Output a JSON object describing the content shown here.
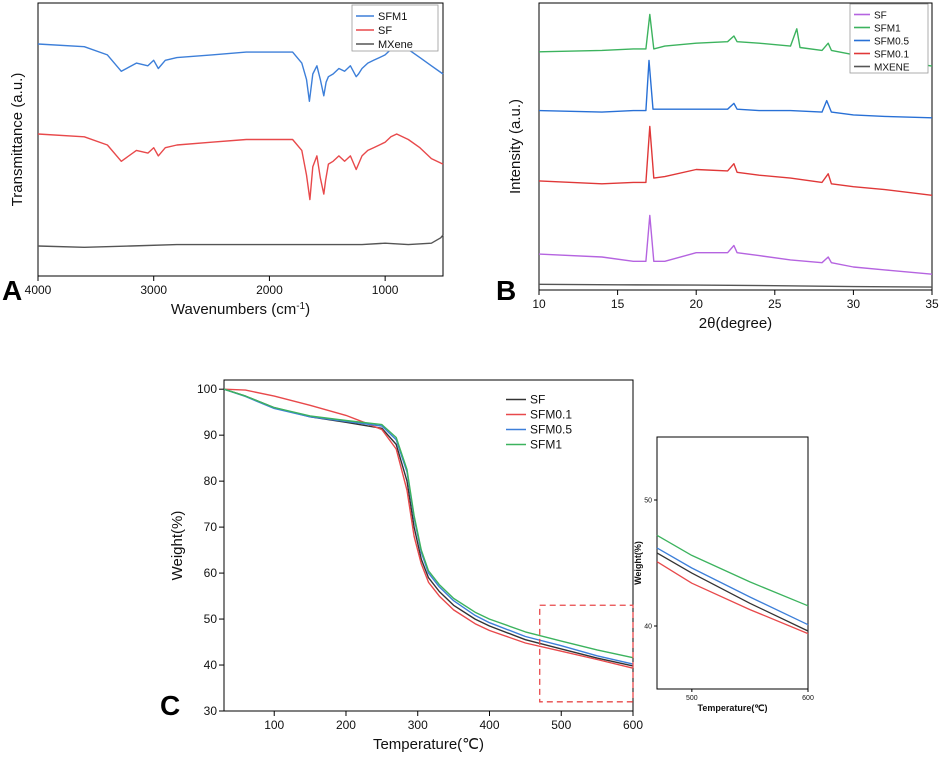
{
  "chart_data": [
    {
      "panel": "A",
      "type": "line",
      "xlabel": "Wavenumbers (cm",
      "xlabel_sup": "-1",
      "xlabel_end": ")",
      "ylabel": "Transmittance (a.u.)",
      "xlim": [
        4000,
        500
      ],
      "x_reversed": true,
      "ylim": [
        0,
        10
      ],
      "xticks": [
        4000,
        3000,
        2000,
        1000
      ],
      "legend_position": "top-right",
      "series": [
        {
          "name": "SFM1",
          "color": "#3d7fd9",
          "x": [
            4000,
            3600,
            3400,
            3280,
            3150,
            3050,
            3000,
            2960,
            2900,
            2800,
            2500,
            2200,
            1800,
            1720,
            1680,
            1655,
            1625,
            1590,
            1560,
            1530,
            1510,
            1490,
            1450,
            1400,
            1350,
            1300,
            1250,
            1230,
            1200,
            1150,
            1100,
            1050,
            1000,
            950,
            900,
            850,
            800,
            700,
            600,
            500
          ],
          "y": [
            8.5,
            8.4,
            8.1,
            7.5,
            7.8,
            7.7,
            7.9,
            7.6,
            7.9,
            8.0,
            8.1,
            8.2,
            8.2,
            7.8,
            7.2,
            6.4,
            7.4,
            7.7,
            7.2,
            6.6,
            7.1,
            7.3,
            7.4,
            7.6,
            7.5,
            7.7,
            7.3,
            7.4,
            7.6,
            7.8,
            7.9,
            8.0,
            8.1,
            8.3,
            8.4,
            8.4,
            8.3,
            8.0,
            7.7,
            7.4
          ]
        },
        {
          "name": "SF",
          "color": "#e8494b",
          "x": [
            4000,
            3600,
            3400,
            3280,
            3150,
            3050,
            3000,
            2960,
            2900,
            2800,
            2500,
            2200,
            1800,
            1720,
            1680,
            1650,
            1625,
            1590,
            1560,
            1530,
            1515,
            1490,
            1450,
            1400,
            1350,
            1300,
            1250,
            1230,
            1200,
            1150,
            1100,
            1050,
            1000,
            950,
            900,
            850,
            800,
            700,
            600,
            500
          ],
          "y": [
            5.2,
            5.1,
            4.8,
            4.2,
            4.6,
            4.5,
            4.7,
            4.4,
            4.7,
            4.8,
            4.9,
            5.0,
            5.0,
            4.6,
            3.7,
            2.8,
            4.0,
            4.4,
            3.6,
            3.0,
            3.5,
            4.1,
            4.2,
            4.4,
            4.2,
            4.4,
            3.9,
            4.1,
            4.4,
            4.6,
            4.7,
            4.8,
            4.9,
            5.1,
            5.2,
            5.1,
            5.0,
            4.7,
            4.3,
            4.1
          ]
        },
        {
          "name": "MXene",
          "color": "#555555",
          "x": [
            4000,
            3600,
            3200,
            2800,
            2400,
            2000,
            1600,
            1200,
            1000,
            800,
            600,
            520,
            500
          ],
          "y": [
            1.1,
            1.05,
            1.1,
            1.15,
            1.15,
            1.15,
            1.15,
            1.15,
            1.2,
            1.15,
            1.2,
            1.4,
            1.5
          ]
        }
      ]
    },
    {
      "panel": "B",
      "type": "line",
      "xlabel": "2θ(degree)",
      "ylabel": "Intensity (a.u.)",
      "xlim": [
        10,
        35
      ],
      "xticks": [
        10,
        15,
        20,
        25,
        30,
        35
      ],
      "ylim": [
        0,
        10
      ],
      "legend_position": "top-right",
      "series": [
        {
          "name": "SF",
          "color": "#b564e0",
          "x": [
            10,
            14,
            16,
            16.8,
            17.05,
            17.3,
            18,
            20,
            22,
            22.4,
            22.6,
            24,
            26,
            28,
            28.4,
            28.6,
            30,
            32,
            35
          ],
          "y": [
            1.25,
            1.15,
            1.0,
            1.0,
            2.6,
            1.0,
            1.0,
            1.3,
            1.3,
            1.55,
            1.3,
            1.2,
            1.05,
            0.95,
            1.15,
            0.95,
            0.8,
            0.7,
            0.55
          ]
        },
        {
          "name": "SFM1",
          "color": "#3cb35e",
          "x": [
            10,
            14,
            16,
            16.8,
            17.05,
            17.3,
            18,
            20,
            22,
            22.4,
            22.6,
            24,
            26,
            26.4,
            26.6,
            28,
            28.4,
            28.6,
            30,
            32,
            35
          ],
          "y": [
            8.3,
            8.35,
            8.4,
            8.4,
            9.6,
            8.4,
            8.5,
            8.6,
            8.65,
            8.85,
            8.65,
            8.6,
            8.5,
            9.1,
            8.45,
            8.35,
            8.6,
            8.35,
            8.2,
            8.05,
            7.8
          ]
        },
        {
          "name": "SFM0.5",
          "color": "#2870d6",
          "x": [
            10,
            14,
            16,
            16.8,
            17.0,
            17.25,
            18,
            20,
            22,
            22.4,
            22.6,
            24,
            26,
            28,
            28.3,
            28.6,
            30,
            32,
            35
          ],
          "y": [
            6.25,
            6.2,
            6.25,
            6.25,
            8.0,
            6.3,
            6.3,
            6.3,
            6.3,
            6.5,
            6.3,
            6.25,
            6.25,
            6.2,
            6.6,
            6.2,
            6.1,
            6.05,
            6.0
          ]
        },
        {
          "name": "SFM0.1",
          "color": "#e03838",
          "x": [
            10,
            14,
            16,
            16.8,
            17.05,
            17.3,
            18,
            20,
            22,
            22.4,
            22.6,
            24,
            26,
            28,
            28.4,
            28.6,
            30,
            32,
            35
          ],
          "y": [
            3.8,
            3.7,
            3.75,
            3.75,
            5.7,
            3.9,
            3.95,
            4.2,
            4.15,
            4.4,
            4.1,
            4.0,
            3.9,
            3.75,
            4.05,
            3.7,
            3.6,
            3.5,
            3.3
          ]
        },
        {
          "name": "MXENE",
          "color": "#555555",
          "x": [
            10,
            15,
            20,
            25,
            30,
            35
          ],
          "y": [
            0.2,
            0.18,
            0.17,
            0.15,
            0.12,
            0.1
          ]
        }
      ]
    },
    {
      "panel": "C",
      "type": "line",
      "xlabel": "Temperature(℃)",
      "ylabel": "Weight(%)",
      "xlim": [
        30,
        600
      ],
      "ylim": [
        30,
        102
      ],
      "xticks": [
        100,
        200,
        300,
        400,
        500,
        600
      ],
      "yticks": [
        30,
        40,
        50,
        60,
        70,
        80,
        90,
        100
      ],
      "legend_position": "top-right",
      "series": [
        {
          "name": "SF",
          "color": "#333333",
          "x": [
            30,
            60,
            100,
            150,
            200,
            250,
            270,
            285,
            295,
            305,
            315,
            330,
            350,
            380,
            400,
            450,
            500,
            550,
            600
          ],
          "y": [
            100,
            98.5,
            96,
            94,
            92.8,
            91.5,
            88,
            80,
            70,
            63,
            59,
            56,
            53,
            50,
            48.5,
            45.5,
            43.5,
            41.5,
            39.8
          ]
        },
        {
          "name": "SFM0.1",
          "color": "#e8494b",
          "x": [
            30,
            60,
            100,
            150,
            200,
            230,
            250,
            270,
            285,
            295,
            305,
            315,
            330,
            350,
            380,
            400,
            450,
            500,
            550,
            600
          ],
          "y": [
            100,
            99.8,
            98.5,
            96.5,
            94.3,
            92.5,
            91.2,
            87,
            78,
            68,
            62,
            58,
            55,
            52,
            49,
            47.5,
            44.8,
            43,
            41.2,
            39.3
          ]
        },
        {
          "name": "SFM0.5",
          "color": "#3d7fd9",
          "x": [
            30,
            60,
            100,
            150,
            200,
            250,
            270,
            285,
            295,
            305,
            315,
            330,
            350,
            380,
            400,
            450,
            500,
            550,
            600
          ],
          "y": [
            100,
            98.4,
            95.8,
            94,
            93,
            92,
            89,
            82,
            72,
            64.5,
            60,
            57,
            54,
            50.8,
            49.2,
            46.2,
            44.2,
            42,
            40.2
          ]
        },
        {
          "name": "SFM1",
          "color": "#3cb35e",
          "x": [
            30,
            60,
            100,
            150,
            200,
            250,
            270,
            285,
            295,
            305,
            315,
            330,
            350,
            380,
            400,
            450,
            500,
            550,
            600
          ],
          "y": [
            100,
            98.5,
            96,
            94.2,
            93.2,
            92.3,
            89.5,
            82.5,
            72.5,
            65,
            60.5,
            57.5,
            54.5,
            51.5,
            50,
            47.2,
            45.2,
            43.3,
            41.6
          ]
        }
      ],
      "zoom_region": {
        "x": [
          470,
          600
        ],
        "y": [
          32,
          53
        ]
      }
    },
    {
      "panel": "C-inset",
      "type": "line",
      "xlabel": "Temperature(℃)",
      "ylabel": "Weight(%)",
      "xlim": [
        470,
        600
      ],
      "ylim": [
        35,
        55
      ],
      "xticks": [
        500,
        600
      ],
      "yticks": [
        40,
        50
      ],
      "series": [
        {
          "name": "SF",
          "color": "#333333",
          "x": [
            470,
            500,
            550,
            600
          ],
          "y": [
            45.8,
            44.2,
            41.8,
            39.6
          ]
        },
        {
          "name": "SFM0.1",
          "color": "#e8494b",
          "x": [
            470,
            500,
            550,
            600
          ],
          "y": [
            45.1,
            43.4,
            41.3,
            39.4
          ]
        },
        {
          "name": "SFM0.5",
          "color": "#3d7fd9",
          "x": [
            470,
            500,
            550,
            600
          ],
          "y": [
            46.2,
            44.6,
            42.3,
            40.1
          ]
        },
        {
          "name": "SFM1",
          "color": "#3cb35e",
          "x": [
            470,
            500,
            550,
            600
          ],
          "y": [
            47.2,
            45.6,
            43.5,
            41.6
          ]
        }
      ]
    }
  ],
  "panel_labels": {
    "a": "A",
    "b": "B",
    "c": "C"
  }
}
